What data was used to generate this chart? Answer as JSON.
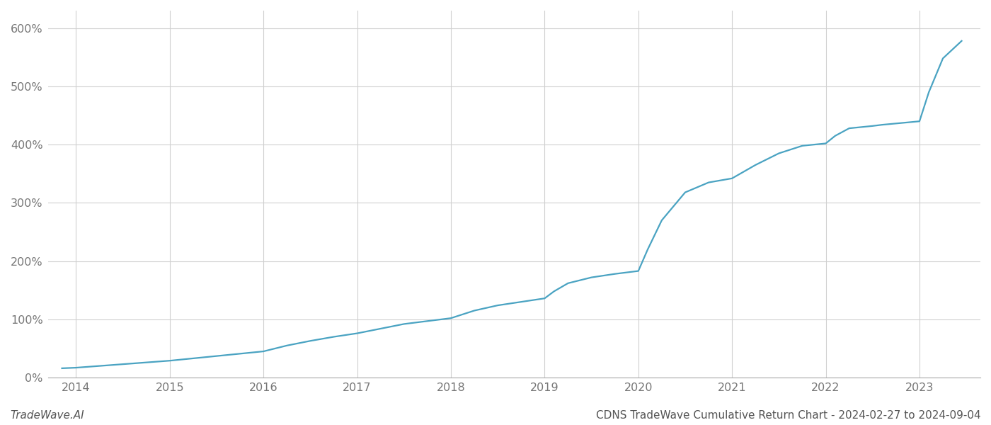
{
  "title": "CDNS TradeWave Cumulative Return Chart - 2024-02-27 to 2024-09-04",
  "watermark": "TradeWave.AI",
  "line_color": "#4aa3c2",
  "background_color": "#ffffff",
  "grid_color": "#d0d0d0",
  "x_years": [
    2014,
    2015,
    2016,
    2017,
    2018,
    2019,
    2020,
    2021,
    2022,
    2023
  ],
  "ylim": [
    0,
    630
  ],
  "yticks": [
    0,
    100,
    200,
    300,
    400,
    500,
    600
  ],
  "data_x": [
    2013.85,
    2014.0,
    2014.25,
    2014.5,
    2014.75,
    2015.0,
    2015.25,
    2015.5,
    2015.75,
    2016.0,
    2016.25,
    2016.5,
    2016.75,
    2017.0,
    2017.25,
    2017.5,
    2017.75,
    2018.0,
    2018.25,
    2018.5,
    2018.75,
    2019.0,
    2019.1,
    2019.25,
    2019.5,
    2019.75,
    2020.0,
    2020.1,
    2020.25,
    2020.5,
    2020.75,
    2021.0,
    2021.25,
    2021.5,
    2021.75,
    2022.0,
    2022.1,
    2022.25,
    2022.5,
    2022.6,
    2023.0,
    2023.1,
    2023.25,
    2023.45
  ],
  "data_y": [
    16,
    17,
    20,
    23,
    26,
    29,
    33,
    37,
    41,
    45,
    55,
    63,
    70,
    76,
    84,
    92,
    97,
    102,
    115,
    124,
    130,
    136,
    148,
    162,
    172,
    178,
    183,
    220,
    270,
    318,
    335,
    342,
    365,
    385,
    398,
    402,
    415,
    428,
    432,
    434,
    440,
    490,
    548,
    578
  ],
  "xlim": [
    2013.7,
    2023.65
  ],
  "title_fontsize": 11,
  "watermark_fontsize": 11,
  "tick_fontsize": 11.5,
  "line_width": 1.6
}
